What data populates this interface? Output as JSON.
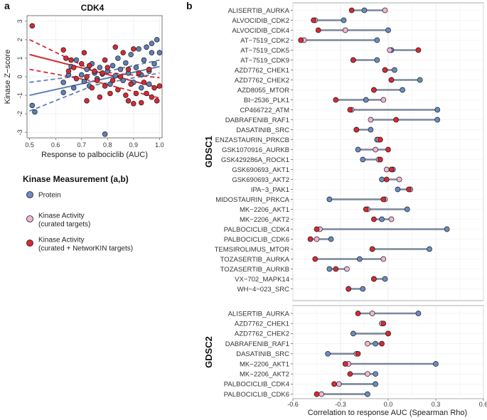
{
  "panel_a": {
    "label": "a",
    "chart_data": {
      "type": "scatter",
      "title": "CDK4",
      "xlabel": "Response to palbociclib (AUC)",
      "ylabel": "Kinase Z−score",
      "xlim": [
        0.49,
        1.01
      ],
      "ylim": [
        -3.3,
        3.3
      ],
      "xticks": [
        "0.5",
        "0.6",
        "0.7",
        "0.8",
        "0.9",
        "1.0"
      ],
      "yticks": [
        "3",
        "2",
        "1",
        "0",
        "-1",
        "-2",
        "-3"
      ],
      "series": [
        {
          "name": "Protein",
          "color": "#5f7fb5",
          "fit": {
            "x": [
              0.5,
              1.0
            ],
            "y": [
              -1.0,
              0.55
            ]
          },
          "ci_upper": {
            "x": [
              0.5,
              0.75,
              1.0
            ],
            "y": [
              -0.3,
              0.15,
              0.9
            ]
          },
          "ci_lower": {
            "x": [
              0.5,
              0.75,
              1.0
            ],
            "y": [
              -1.85,
              -0.45,
              0.2
            ]
          },
          "points": [
            [
              0.52,
              -1.9
            ],
            [
              0.51,
              -1.55
            ],
            [
              0.63,
              -0.3
            ],
            [
              0.63,
              -0.85
            ],
            [
              0.65,
              0.1
            ],
            [
              0.66,
              0.55
            ],
            [
              0.67,
              -0.6
            ],
            [
              0.68,
              0.9
            ],
            [
              0.7,
              0.1
            ],
            [
              0.71,
              -0.25
            ],
            [
              0.72,
              0.4
            ],
            [
              0.73,
              -0.5
            ],
            [
              0.74,
              0.7
            ],
            [
              0.75,
              0.2
            ],
            [
              0.76,
              -0.1
            ],
            [
              0.77,
              0.5
            ],
            [
              0.78,
              0.15
            ],
            [
              0.79,
              -3.1
            ],
            [
              0.8,
              0.3
            ],
            [
              0.81,
              -0.4
            ],
            [
              0.82,
              0.6
            ],
            [
              0.83,
              0.05
            ],
            [
              0.84,
              1.0
            ],
            [
              0.85,
              0.4
            ],
            [
              0.86,
              -0.2
            ],
            [
              0.87,
              0.75
            ],
            [
              0.88,
              0.2
            ],
            [
              0.89,
              1.2
            ],
            [
              0.9,
              -0.3
            ],
            [
              0.91,
              0.5
            ],
            [
              0.92,
              1.5
            ],
            [
              0.93,
              0.1
            ],
            [
              0.94,
              0.9
            ],
            [
              0.95,
              1.6
            ],
            [
              0.96,
              0.3
            ],
            [
              0.97,
              1.8
            ],
            [
              0.98,
              0.7
            ],
            [
              0.99,
              2.0
            ],
            [
              1.0,
              1.3
            ],
            [
              0.97,
              1.3
            ],
            [
              0.93,
              -0.6
            ],
            [
              0.96,
              -0.4
            ]
          ]
        },
        {
          "name": "Kinase Activity (curated + NetworKIN targets)",
          "color": "#d62a35",
          "fit": {
            "x": [
              0.5,
              1.0
            ],
            "y": [
              1.2,
              -0.6
            ]
          },
          "ci_upper": {
            "x": [
              0.5,
              0.75,
              1.0
            ],
            "y": [
              2.0,
              0.3,
              -0.05
            ]
          },
          "ci_lower": {
            "x": [
              0.5,
              0.75,
              1.0
            ],
            "y": [
              0.4,
              -0.25,
              -1.15
            ]
          },
          "points": [
            [
              0.51,
              2.75
            ],
            [
              0.63,
              1.45
            ],
            [
              0.64,
              1.0
            ],
            [
              0.65,
              0.3
            ],
            [
              0.66,
              0.9
            ],
            [
              0.67,
              0.5
            ],
            [
              0.68,
              -0.1
            ],
            [
              0.7,
              0.7
            ],
            [
              0.71,
              1.3
            ],
            [
              0.72,
              0.0
            ],
            [
              0.73,
              0.6
            ],
            [
              0.74,
              -0.6
            ],
            [
              0.75,
              0.3
            ],
            [
              0.76,
              -0.2
            ],
            [
              0.77,
              -1.1
            ],
            [
              0.78,
              0.2
            ],
            [
              0.79,
              -0.5
            ],
            [
              0.8,
              0.5
            ],
            [
              0.81,
              -0.9
            ],
            [
              0.82,
              -0.2
            ],
            [
              0.83,
              1.6
            ],
            [
              0.84,
              -0.7
            ],
            [
              0.85,
              0.0
            ],
            [
              0.86,
              1.3
            ],
            [
              0.87,
              -1.0
            ],
            [
              0.88,
              0.4
            ],
            [
              0.89,
              -0.4
            ],
            [
              0.9,
              1.5
            ],
            [
              0.91,
              -0.9
            ],
            [
              0.92,
              0.2
            ],
            [
              0.93,
              -1.4
            ],
            [
              0.94,
              -0.3
            ],
            [
              0.95,
              -0.9
            ],
            [
              0.96,
              0.4
            ],
            [
              0.97,
              -1.1
            ],
            [
              0.98,
              -0.6
            ],
            [
              0.99,
              -1.3
            ],
            [
              1.0,
              -0.5
            ],
            [
              0.9,
              -1.45
            ],
            [
              0.88,
              -1.3
            ],
            [
              0.79,
              0.9
            ],
            [
              0.72,
              -1.3
            ]
          ]
        }
      ]
    },
    "legend": {
      "title": "Kinase Measurement (a,b)",
      "items": [
        {
          "label_lines": [
            "Protein"
          ],
          "color": "#6a8cc2"
        },
        {
          "label_lines": [
            "Kinase Activity",
            "(curated targets)"
          ],
          "color": "#f0b6d3"
        },
        {
          "label_lines": [
            "Kinase Activity",
            "(curated + NetworKIN targets)"
          ],
          "color": "#d62a35"
        }
      ]
    }
  },
  "panel_b": {
    "label": "b",
    "chart_data": {
      "type": "dumbbell",
      "xlabel": "Correlation to response AUC (Spearman Rho)",
      "xlim": [
        -0.6,
        0.6
      ],
      "xticks": [
        "-0.6",
        "-0.3",
        "0.0",
        "0.3",
        "0.6"
      ],
      "series_colors": {
        "protein": "#6a8cc2",
        "curated": "#f0b6d3",
        "networkin": "#d62a35"
      },
      "facets": [
        {
          "name": "GDSC1",
          "rows": [
            {
              "label": "ALISERTIB_AURKA",
              "protein": -0.15,
              "curated": -0.02,
              "networkin": -0.23
            },
            {
              "label": "ALVOCIDIB_CDK2",
              "protein": -0.28,
              "curated": -0.46,
              "networkin": -0.47
            },
            {
              "label": "ALVOCIDIB_CDK4",
              "protein": 0.0,
              "curated": -0.27,
              "networkin": -0.44
            },
            {
              "label": "AT−7519_CDK2",
              "protein": -0.07,
              "curated": -0.53,
              "networkin": -0.55
            },
            {
              "label": "AT−7519_CDK5",
              "protein": 0.02,
              "curated": 0.01,
              "networkin": 0.19
            },
            {
              "label": "AT−7519_CDK9",
              "protein": -0.07,
              "curated": -0.22,
              "networkin": -0.22
            },
            {
              "label": "AZD7762_CHEK1",
              "protein": 0.04,
              "curated": -0.02,
              "networkin": -0.02
            },
            {
              "label": "AZD7762_CHEK2",
              "protein": 0.2,
              "curated": 0.02,
              "networkin": 0.02
            },
            {
              "label": "AZD8055_MTOR",
              "protein": 0.09,
              "curated": -0.09,
              "networkin": -0.09
            },
            {
              "label": "BI−2536_PLK1",
              "protein": -0.14,
              "curated": -0.03,
              "networkin": -0.33
            },
            {
              "label": "CP466722_ATM",
              "protein": 0.31,
              "curated": -0.23,
              "networkin": -0.24
            },
            {
              "label": "DABRAFENIB_RAF1",
              "protein": 0.31,
              "curated": -0.11,
              "networkin": 0.05
            },
            {
              "label": "DASATINIB_SRC",
              "protein": -0.11,
              "curated": -0.2,
              "networkin": -0.2
            },
            {
              "label": "ENZASTAURIN_PRKCB",
              "protein": -0.07,
              "curated": -0.06,
              "networkin": -0.05
            },
            {
              "label": "GSK1070916_AURKB",
              "protein": -0.19,
              "curated": -0.08,
              "networkin": 0.0
            },
            {
              "label": "GSK429286A_ROCK1",
              "protein": -0.16,
              "curated": -0.06,
              "networkin": -0.05
            },
            {
              "label": "GSK690693_AKT1",
              "protein": 0.03,
              "curated": -0.01,
              "networkin": 0.02
            },
            {
              "label": "GSK690693_AKT2",
              "protein": -0.04,
              "curated": 0.07,
              "networkin": -0.01
            },
            {
              "label": "IPA−3_PAK1",
              "protein": 0.06,
              "curated": 0.14,
              "networkin": 0.13
            },
            {
              "label": "MIDOSTAURIN_PRKCA",
              "protein": -0.37,
              "curated": -0.02,
              "networkin": -0.03
            },
            {
              "label": "MK−2206_AKT1",
              "protein": 0.12,
              "curated": -0.13,
              "networkin": -0.14
            },
            {
              "label": "MK−2206_AKT2",
              "protein": -0.04,
              "curated": 0.02,
              "networkin": -0.09
            },
            {
              "label": "PALBOCICLIB_CDK4",
              "protein": 0.37,
              "curated": -0.43,
              "networkin": -0.45
            },
            {
              "label": "PALBOCICLIB_CDK6",
              "protein": -0.36,
              "curated": -0.45,
              "networkin": -0.49
            },
            {
              "label": "TEMSIROLIMUS_MTOR",
              "protein": 0.26,
              "curated": -0.1,
              "networkin": -0.1
            },
            {
              "label": "TOZASERTIB_AURKA",
              "protein": -0.18,
              "curated": -0.03,
              "networkin": -0.46
            },
            {
              "label": "TOZASERTIB_AURKB",
              "protein": -0.37,
              "curated": -0.26,
              "networkin": -0.33
            },
            {
              "label": "VX−702_MAPK14",
              "protein": -0.02,
              "curated": -0.09,
              "networkin": -0.09
            },
            {
              "label": "WH−4−023_SRC",
              "protein": -0.16,
              "curated": -0.25,
              "networkin": -0.25
            }
          ]
        },
        {
          "name": "GDSC2",
          "rows": [
            {
              "label": "ALISERTIB_AURKA",
              "protein": 0.19,
              "curated": -0.1,
              "networkin": -0.19
            },
            {
              "label": "AZD7762_CHEK1",
              "protein": -0.04,
              "curated": -0.04,
              "networkin": -0.03
            },
            {
              "label": "AZD7762_CHEK2",
              "protein": -0.22,
              "curated": 0.0,
              "networkin": 0.0
            },
            {
              "label": "DABRAFENIB_RAF1",
              "protein": -0.08,
              "curated": -0.13,
              "networkin": -0.04
            },
            {
              "label": "DASATINIB_SRC",
              "protein": -0.38,
              "curated": -0.2,
              "networkin": -0.19
            },
            {
              "label": "MK−2206_AKT1",
              "protein": 0.3,
              "curated": -0.25,
              "networkin": -0.27
            },
            {
              "label": "MK−2206_AKT2",
              "protein": -0.08,
              "curated": -0.13,
              "networkin": -0.24
            },
            {
              "label": "PALBOCICLIB_CDK4",
              "protein": -0.08,
              "curated": -0.31,
              "networkin": -0.34
            },
            {
              "label": "PALBOCICLIB_CDK6",
              "protein": -0.13,
              "curated": -0.42,
              "networkin": -0.45
            }
          ]
        }
      ]
    }
  }
}
